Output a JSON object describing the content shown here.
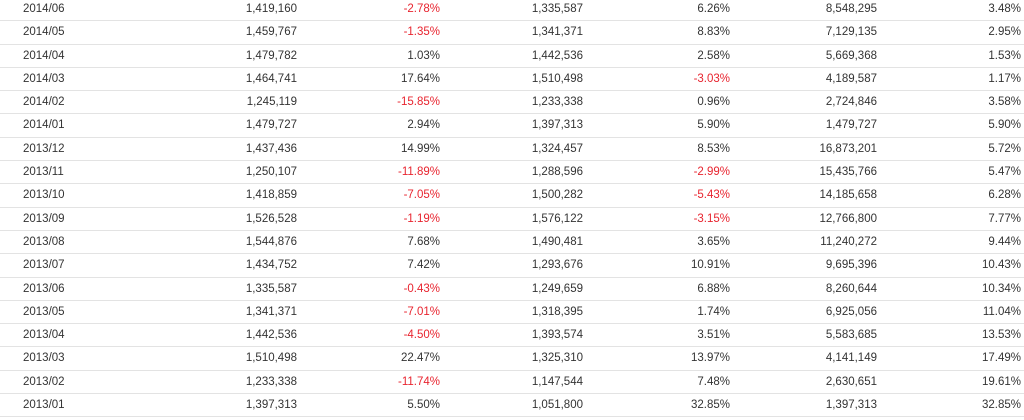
{
  "colors": {
    "text": "#333333",
    "negative": "#e8242f",
    "divider": "#e3e3e3"
  },
  "table": {
    "rows": [
      [
        "2014/06",
        "1,419,160",
        "-2.78%",
        "1,335,587",
        "6.26%",
        "8,548,295",
        "3.48%"
      ],
      [
        "2014/05",
        "1,459,767",
        "-1.35%",
        "1,341,371",
        "8.83%",
        "7,129,135",
        "2.95%"
      ],
      [
        "2014/04",
        "1,479,782",
        "1.03%",
        "1,442,536",
        "2.58%",
        "5,669,368",
        "1.53%"
      ],
      [
        "2014/03",
        "1,464,741",
        "17.64%",
        "1,510,498",
        "-3.03%",
        "4,189,587",
        "1.17%"
      ],
      [
        "2014/02",
        "1,245,119",
        "-15.85%",
        "1,233,338",
        "0.96%",
        "2,724,846",
        "3.58%"
      ],
      [
        "2014/01",
        "1,479,727",
        "2.94%",
        "1,397,313",
        "5.90%",
        "1,479,727",
        "5.90%"
      ],
      [
        "2013/12",
        "1,437,436",
        "14.99%",
        "1,324,457",
        "8.53%",
        "16,873,201",
        "5.72%"
      ],
      [
        "2013/11",
        "1,250,107",
        "-11.89%",
        "1,288,596",
        "-2.99%",
        "15,435,766",
        "5.47%"
      ],
      [
        "2013/10",
        "1,418,859",
        "-7.05%",
        "1,500,282",
        "-5.43%",
        "14,185,658",
        "6.28%"
      ],
      [
        "2013/09",
        "1,526,528",
        "-1.19%",
        "1,576,122",
        "-3.15%",
        "12,766,800",
        "7.77%"
      ],
      [
        "2013/08",
        "1,544,876",
        "7.68%",
        "1,490,481",
        "3.65%",
        "11,240,272",
        "9.44%"
      ],
      [
        "2013/07",
        "1,434,752",
        "7.42%",
        "1,293,676",
        "10.91%",
        "9,695,396",
        "10.43%"
      ],
      [
        "2013/06",
        "1,335,587",
        "-0.43%",
        "1,249,659",
        "6.88%",
        "8,260,644",
        "10.34%"
      ],
      [
        "2013/05",
        "1,341,371",
        "-7.01%",
        "1,318,395",
        "1.74%",
        "6,925,056",
        "11.04%"
      ],
      [
        "2013/04",
        "1,442,536",
        "-4.50%",
        "1,393,574",
        "3.51%",
        "5,583,685",
        "13.53%"
      ],
      [
        "2013/03",
        "1,510,498",
        "22.47%",
        "1,325,310",
        "13.97%",
        "4,141,149",
        "17.49%"
      ],
      [
        "2013/02",
        "1,233,338",
        "-11.74%",
        "1,147,544",
        "7.48%",
        "2,630,651",
        "19.61%"
      ],
      [
        "2013/01",
        "1,397,313",
        "5.50%",
        "1,051,800",
        "32.85%",
        "1,397,313",
        "32.85%"
      ]
    ]
  }
}
